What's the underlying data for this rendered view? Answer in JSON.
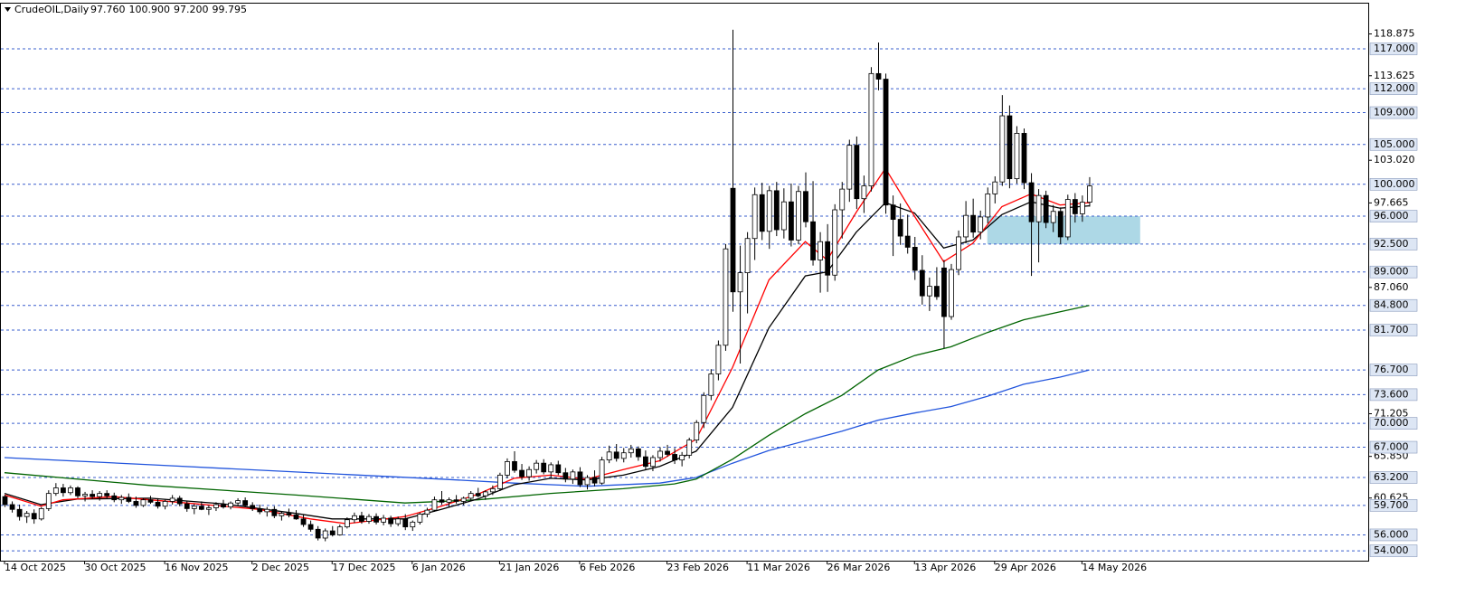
{
  "chart_data": {
    "type": "candlestick",
    "title": "CrudeOIL,Daily",
    "header_values": [
      "97.760",
      "100.900",
      "97.200",
      "99.795"
    ],
    "categories": [
      "14 Oct 2025",
      null,
      null,
      null,
      null,
      null,
      null,
      null,
      null,
      null,
      null,
      "30 Oct 2025",
      null,
      null,
      null,
      null,
      null,
      null,
      null,
      null,
      null,
      null,
      "16 Nov 2025",
      null,
      null,
      null,
      null,
      null,
      null,
      null,
      null,
      null,
      null,
      null,
      "2 Dec 2025",
      null,
      null,
      null,
      null,
      null,
      null,
      null,
      null,
      null,
      null,
      "17 Dec 2025",
      null,
      null,
      null,
      null,
      null,
      null,
      null,
      null,
      null,
      null,
      "6 Jan 2026",
      null,
      null,
      null,
      null,
      null,
      null,
      null,
      null,
      null,
      null,
      null,
      "21 Jan 2026",
      null,
      null,
      null,
      null,
      null,
      null,
      null,
      null,
      null,
      null,
      "6 Feb 2026",
      null,
      null,
      null,
      null,
      null,
      null,
      null,
      null,
      null,
      null,
      null,
      "23 Feb 2026",
      null,
      null,
      null,
      null,
      null,
      null,
      null,
      null,
      null,
      null,
      "11 Mar 2026",
      null,
      null,
      null,
      null,
      null,
      null,
      null,
      null,
      null,
      null,
      "26 Mar 2026",
      null,
      null,
      null,
      null,
      null,
      null,
      null,
      null,
      null,
      null,
      null,
      "13 Apr 2026",
      null,
      null,
      null,
      null,
      null,
      null,
      null,
      null,
      null,
      null,
      "29 Apr 2026",
      null,
      null,
      null,
      null,
      null,
      null,
      null,
      null,
      null,
      null,
      null,
      "14 May 2026",
      null
    ],
    "ohlc": [
      [
        60.8,
        61.0,
        59.5,
        59.8
      ],
      [
        59.8,
        60.2,
        58.8,
        59.2
      ],
      [
        59.2,
        59.8,
        57.8,
        58.3
      ],
      [
        58.3,
        59.0,
        57.5,
        58.7
      ],
      [
        58.7,
        59.2,
        57.4,
        58.0
      ],
      [
        58.0,
        59.5,
        57.8,
        59.3
      ],
      [
        59.3,
        61.6,
        59.0,
        61.2
      ],
      [
        61.2,
        62.5,
        60.9,
        61.9
      ],
      [
        61.9,
        62.4,
        60.8,
        61.3
      ],
      [
        61.3,
        62.2,
        61.0,
        61.9
      ],
      [
        61.9,
        62.1,
        60.6,
        60.9
      ],
      [
        60.9,
        61.4,
        60.2,
        61.1
      ],
      [
        61.1,
        61.6,
        60.5,
        60.8
      ],
      [
        60.8,
        61.5,
        60.3,
        61.2
      ],
      [
        61.2,
        61.6,
        60.6,
        60.9
      ],
      [
        60.9,
        61.3,
        60.1,
        60.4
      ],
      [
        60.4,
        61.0,
        59.9,
        60.7
      ],
      [
        60.7,
        61.2,
        60.0,
        60.2
      ],
      [
        60.2,
        60.8,
        59.4,
        59.7
      ],
      [
        59.7,
        60.6,
        59.5,
        60.4
      ],
      [
        60.4,
        60.9,
        59.9,
        60.1
      ],
      [
        60.1,
        60.6,
        59.3,
        59.6
      ],
      [
        59.6,
        60.4,
        59.2,
        60.2
      ],
      [
        60.2,
        61.0,
        59.8,
        60.6
      ],
      [
        60.6,
        60.9,
        59.6,
        59.9
      ],
      [
        59.9,
        60.3,
        58.9,
        59.3
      ],
      [
        59.3,
        59.9,
        58.6,
        59.6
      ],
      [
        59.6,
        60.2,
        59.1,
        59.2
      ],
      [
        59.2,
        59.7,
        58.5,
        59.4
      ],
      [
        59.4,
        60.1,
        59.0,
        59.8
      ],
      [
        59.8,
        60.4,
        59.3,
        59.5
      ],
      [
        59.5,
        60.2,
        59.2,
        60.0
      ],
      [
        60.0,
        60.6,
        59.6,
        60.3
      ],
      [
        60.3,
        60.7,
        59.5,
        59.7
      ],
      [
        59.7,
        60.1,
        59.0,
        59.3
      ],
      [
        59.3,
        59.8,
        58.6,
        58.9
      ],
      [
        58.9,
        59.5,
        58.3,
        59.2
      ],
      [
        59.2,
        59.6,
        58.1,
        58.4
      ],
      [
        58.4,
        59.0,
        57.8,
        58.7
      ],
      [
        58.7,
        59.3,
        58.2,
        58.5
      ],
      [
        58.5,
        59.1,
        57.9,
        58.0
      ],
      [
        58.0,
        58.6,
        57.0,
        57.3
      ],
      [
        57.3,
        57.8,
        56.4,
        56.7
      ],
      [
        56.7,
        57.1,
        55.3,
        55.6
      ],
      [
        55.6,
        56.8,
        55.2,
        56.5
      ],
      [
        56.5,
        57.1,
        55.8,
        56.0
      ],
      [
        56.0,
        57.3,
        55.9,
        57.0
      ],
      [
        57.0,
        58.2,
        56.8,
        57.9
      ],
      [
        57.9,
        58.8,
        57.5,
        58.4
      ],
      [
        58.4,
        58.9,
        57.4,
        57.7
      ],
      [
        57.7,
        58.6,
        57.4,
        58.3
      ],
      [
        58.3,
        58.7,
        57.3,
        57.6
      ],
      [
        57.6,
        58.5,
        57.2,
        58.1
      ],
      [
        58.1,
        58.4,
        57.0,
        57.4
      ],
      [
        57.4,
        58.3,
        57.1,
        58.0
      ],
      [
        58.0,
        58.6,
        56.6,
        57.0
      ],
      [
        57.0,
        57.8,
        56.5,
        57.6
      ],
      [
        57.6,
        58.8,
        57.3,
        58.6
      ],
      [
        58.6,
        59.4,
        58.2,
        59.1
      ],
      [
        59.1,
        60.8,
        58.9,
        60.4
      ],
      [
        60.4,
        61.5,
        59.8,
        60.1
      ],
      [
        60.1,
        60.7,
        59.5,
        60.4
      ],
      [
        60.4,
        61.0,
        59.9,
        60.2
      ],
      [
        60.2,
        60.8,
        59.7,
        60.6
      ],
      [
        60.6,
        61.5,
        60.2,
        61.2
      ],
      [
        61.2,
        61.9,
        60.7,
        60.9
      ],
      [
        60.9,
        61.6,
        60.4,
        61.4
      ],
      [
        61.4,
        62.2,
        61.0,
        61.8
      ],
      [
        61.8,
        63.8,
        61.5,
        63.5
      ],
      [
        63.5,
        65.6,
        63.1,
        65.2
      ],
      [
        65.2,
        66.5,
        63.8,
        64.1
      ],
      [
        64.1,
        64.9,
        62.9,
        63.3
      ],
      [
        63.3,
        64.6,
        62.8,
        64.2
      ],
      [
        64.2,
        65.4,
        63.7,
        65.0
      ],
      [
        65.0,
        65.5,
        63.6,
        63.9
      ],
      [
        63.9,
        65.1,
        63.2,
        64.8
      ],
      [
        64.8,
        65.3,
        63.5,
        63.8
      ],
      [
        63.8,
        64.4,
        62.6,
        63.0
      ],
      [
        63.0,
        64.2,
        62.4,
        63.9
      ],
      [
        63.9,
        64.5,
        62.0,
        62.3
      ],
      [
        62.3,
        63.5,
        61.7,
        63.2
      ],
      [
        63.2,
        64.1,
        62.1,
        62.5
      ],
      [
        62.5,
        65.8,
        62.3,
        65.4
      ],
      [
        65.4,
        67.2,
        65.0,
        66.4
      ],
      [
        66.4,
        67.4,
        65.2,
        65.6
      ],
      [
        65.6,
        66.9,
        65.1,
        66.3
      ],
      [
        66.3,
        67.3,
        65.7,
        66.8
      ],
      [
        66.8,
        67.1,
        65.3,
        65.8
      ],
      [
        65.8,
        66.6,
        64.2,
        64.6
      ],
      [
        64.6,
        66.0,
        64.0,
        65.7
      ],
      [
        65.7,
        67.0,
        65.2,
        66.5
      ],
      [
        66.5,
        67.3,
        65.8,
        66.1
      ],
      [
        66.1,
        66.9,
        64.9,
        65.4
      ],
      [
        65.4,
        66.4,
        64.6,
        66.0
      ],
      [
        66.0,
        68.2,
        65.6,
        67.9
      ],
      [
        67.9,
        70.4,
        67.5,
        70.1
      ],
      [
        70.1,
        73.9,
        69.4,
        73.5
      ],
      [
        73.5,
        76.8,
        72.9,
        76.2
      ],
      [
        76.2,
        80.4,
        75.4,
        79.8
      ],
      [
        79.8,
        92.5,
        79.1,
        91.9
      ],
      [
        99.5,
        119.4,
        84.0,
        86.5
      ],
      [
        86.5,
        92.3,
        77.5,
        88.9
      ],
      [
        88.9,
        94.0,
        83.8,
        93.2
      ],
      [
        93.2,
        99.6,
        90.5,
        98.7
      ],
      [
        98.7,
        100.2,
        93.0,
        94.1
      ],
      [
        94.1,
        99.8,
        91.9,
        99.2
      ],
      [
        99.2,
        100.3,
        93.5,
        94.3
      ],
      [
        94.3,
        99.5,
        93.2,
        97.8
      ],
      [
        97.8,
        100.1,
        92.2,
        93.0
      ],
      [
        93.0,
        99.8,
        92.5,
        99.1
      ],
      [
        99.1,
        101.5,
        94.6,
        95.3
      ],
      [
        95.3,
        100.4,
        89.8,
        90.5
      ],
      [
        90.5,
        94.0,
        86.4,
        92.8
      ],
      [
        92.8,
        95.0,
        86.5,
        88.6
      ],
      [
        88.6,
        97.5,
        87.9,
        96.8
      ],
      [
        96.8,
        100.3,
        93.2,
        99.4
      ],
      [
        99.4,
        105.6,
        97.8,
        104.9
      ],
      [
        104.9,
        106.0,
        96.9,
        98.2
      ],
      [
        98.2,
        101.1,
        96.4,
        99.8
      ],
      [
        99.8,
        114.7,
        99.1,
        113.9
      ],
      [
        113.9,
        117.8,
        111.8,
        113.2
      ],
      [
        113.2,
        113.9,
        96.3,
        97.4
      ],
      [
        97.4,
        98.6,
        91.0,
        95.6
      ],
      [
        95.6,
        97.6,
        92.4,
        93.5
      ],
      [
        93.5,
        96.2,
        91.3,
        92.1
      ],
      [
        92.1,
        93.4,
        88.0,
        89.2
      ],
      [
        89.2,
        91.1,
        84.9,
        86.0
      ],
      [
        86.0,
        88.3,
        84.1,
        87.2
      ],
      [
        87.2,
        89.6,
        85.5,
        85.9
      ],
      [
        89.5,
        90.5,
        79.4,
        83.4
      ],
      [
        83.4,
        90.0,
        83.0,
        89.3
      ],
      [
        89.3,
        94.2,
        88.6,
        93.4
      ],
      [
        93.4,
        97.9,
        92.6,
        96.1
      ],
      [
        96.1,
        98.2,
        93.3,
        94.0
      ],
      [
        94.0,
        96.7,
        93.1,
        95.9
      ],
      [
        95.9,
        99.6,
        95.1,
        98.8
      ],
      [
        98.8,
        101.0,
        97.6,
        100.3
      ],
      [
        100.3,
        111.2,
        99.8,
        108.6
      ],
      [
        108.6,
        109.9,
        99.5,
        100.7
      ],
      [
        100.7,
        107.3,
        100.1,
        106.4
      ],
      [
        106.4,
        107.0,
        99.4,
        100.2
      ],
      [
        100.2,
        101.4,
        88.5,
        95.3
      ],
      [
        95.3,
        99.4,
        90.2,
        98.6
      ],
      [
        98.6,
        99.2,
        94.5,
        95.2
      ],
      [
        95.2,
        97.4,
        94.0,
        96.6
      ],
      [
        96.6,
        97.1,
        92.5,
        93.4
      ],
      [
        93.4,
        98.7,
        93.0,
        98.1
      ],
      [
        98.1,
        98.9,
        95.2,
        96.3
      ],
      [
        96.3,
        98.6,
        95.3,
        97.76
      ],
      [
        97.76,
        100.9,
        97.2,
        99.795
      ]
    ],
    "indicators": [
      {
        "color": "#2255dd",
        "x": [
          0,
          20,
          40,
          60,
          70,
          80,
          90,
          95,
          100,
          105,
          110,
          115,
          120,
          125,
          130,
          135,
          140,
          145,
          149
        ],
        "values": [
          65.7,
          64.8,
          63.9,
          63.0,
          62.5,
          62.1,
          62.5,
          63.2,
          65.0,
          66.6,
          67.8,
          69.0,
          70.4,
          71.3,
          72.1,
          73.4,
          74.9,
          75.8,
          76.7
        ]
      },
      {
        "color": "#006400",
        "x": [
          0,
          20,
          40,
          55,
          65,
          75,
          85,
          92,
          95,
          100,
          105,
          110,
          115,
          120,
          125,
          130,
          135,
          140,
          145,
          149
        ],
        "values": [
          63.8,
          62.2,
          61.0,
          60.0,
          60.4,
          61.2,
          61.8,
          62.4,
          63.0,
          65.5,
          68.5,
          71.2,
          73.5,
          76.7,
          78.5,
          79.6,
          81.4,
          83.0,
          84.0,
          84.8
        ]
      },
      {
        "color": "#000000",
        "x": [
          0,
          5,
          10,
          20,
          30,
          40,
          45,
          55,
          60,
          65,
          70,
          75,
          80,
          85,
          90,
          95,
          100,
          105,
          110,
          113,
          117,
          121,
          125,
          129,
          133,
          137,
          141,
          145,
          149
        ],
        "values": [
          61.2,
          59.8,
          60.5,
          60.6,
          59.9,
          58.7,
          58.0,
          58.0,
          59.2,
          60.5,
          62.3,
          63.1,
          62.9,
          63.5,
          64.6,
          66.5,
          72.0,
          82.0,
          88.5,
          89.0,
          94.0,
          97.7,
          96.4,
          92.0,
          93.0,
          96.2,
          97.8,
          97.0,
          97.3
        ]
      },
      {
        "color": "#ff0000",
        "x": [
          0,
          5,
          8,
          15,
          25,
          35,
          42,
          47,
          55,
          60,
          65,
          70,
          75,
          80,
          85,
          90,
          95,
          100,
          105,
          110,
          113,
          117,
          121,
          125,
          129,
          133,
          137,
          141,
          145,
          149
        ],
        "values": [
          61.0,
          59.6,
          60.4,
          60.8,
          60.0,
          59.2,
          58.0,
          57.4,
          58.3,
          59.6,
          61.1,
          63.1,
          63.5,
          63.0,
          64.2,
          65.3,
          68.0,
          77.0,
          88.0,
          92.8,
          90.5,
          96.5,
          102.0,
          96.0,
          90.3,
          92.6,
          97.2,
          98.8,
          97.4,
          97.7
        ]
      }
    ],
    "zone": {
      "low": 92.5,
      "high": 96,
      "x": [
        135,
        156
      ],
      "color": "#add8e6"
    },
    "ylim": [
      52.76,
      122.68
    ],
    "yticks": [
      {
        "value": 118.875,
        "label": "118.875"
      },
      {
        "value": 113.625,
        "label": "113.625"
      },
      {
        "value": 103.02,
        "label": "103.020"
      },
      {
        "value": 97.665,
        "label": "97.665"
      },
      {
        "value": 87.06,
        "label": "87.060"
      },
      {
        "value": 71.205,
        "label": "71.205"
      },
      {
        "value": 65.85,
        "label": "65.850"
      },
      {
        "value": 60.625,
        "label": "60.625"
      }
    ],
    "levels": [
      {
        "value": 117,
        "label": "117.000"
      },
      {
        "value": 112,
        "label": "112.000"
      },
      {
        "value": 109,
        "label": "109.000"
      },
      {
        "value": 105,
        "label": "105.000"
      },
      {
        "value": 100,
        "label": "100.000"
      },
      {
        "value": 96,
        "label": "96.000"
      },
      {
        "value": 92.5,
        "label": "92.500"
      },
      {
        "value": 89,
        "label": "89.000"
      },
      {
        "value": 84.8,
        "label": "84.800"
      },
      {
        "value": 81.7,
        "label": "81.700"
      },
      {
        "value": 76.7,
        "label": "76.700"
      },
      {
        "value": 73.6,
        "label": "73.600"
      },
      {
        "value": 70,
        "label": "70.000"
      },
      {
        "value": 67,
        "label": "67.000"
      },
      {
        "value": 63.2,
        "label": "63.200"
      },
      {
        "value": 59.7,
        "label": "59.700"
      },
      {
        "value": 56,
        "label": "56.000"
      },
      {
        "value": 54,
        "label": "54.000"
      }
    ],
    "level_color": "#3a5fcd",
    "up_color": "#ffffff",
    "down_color": "#000000"
  }
}
